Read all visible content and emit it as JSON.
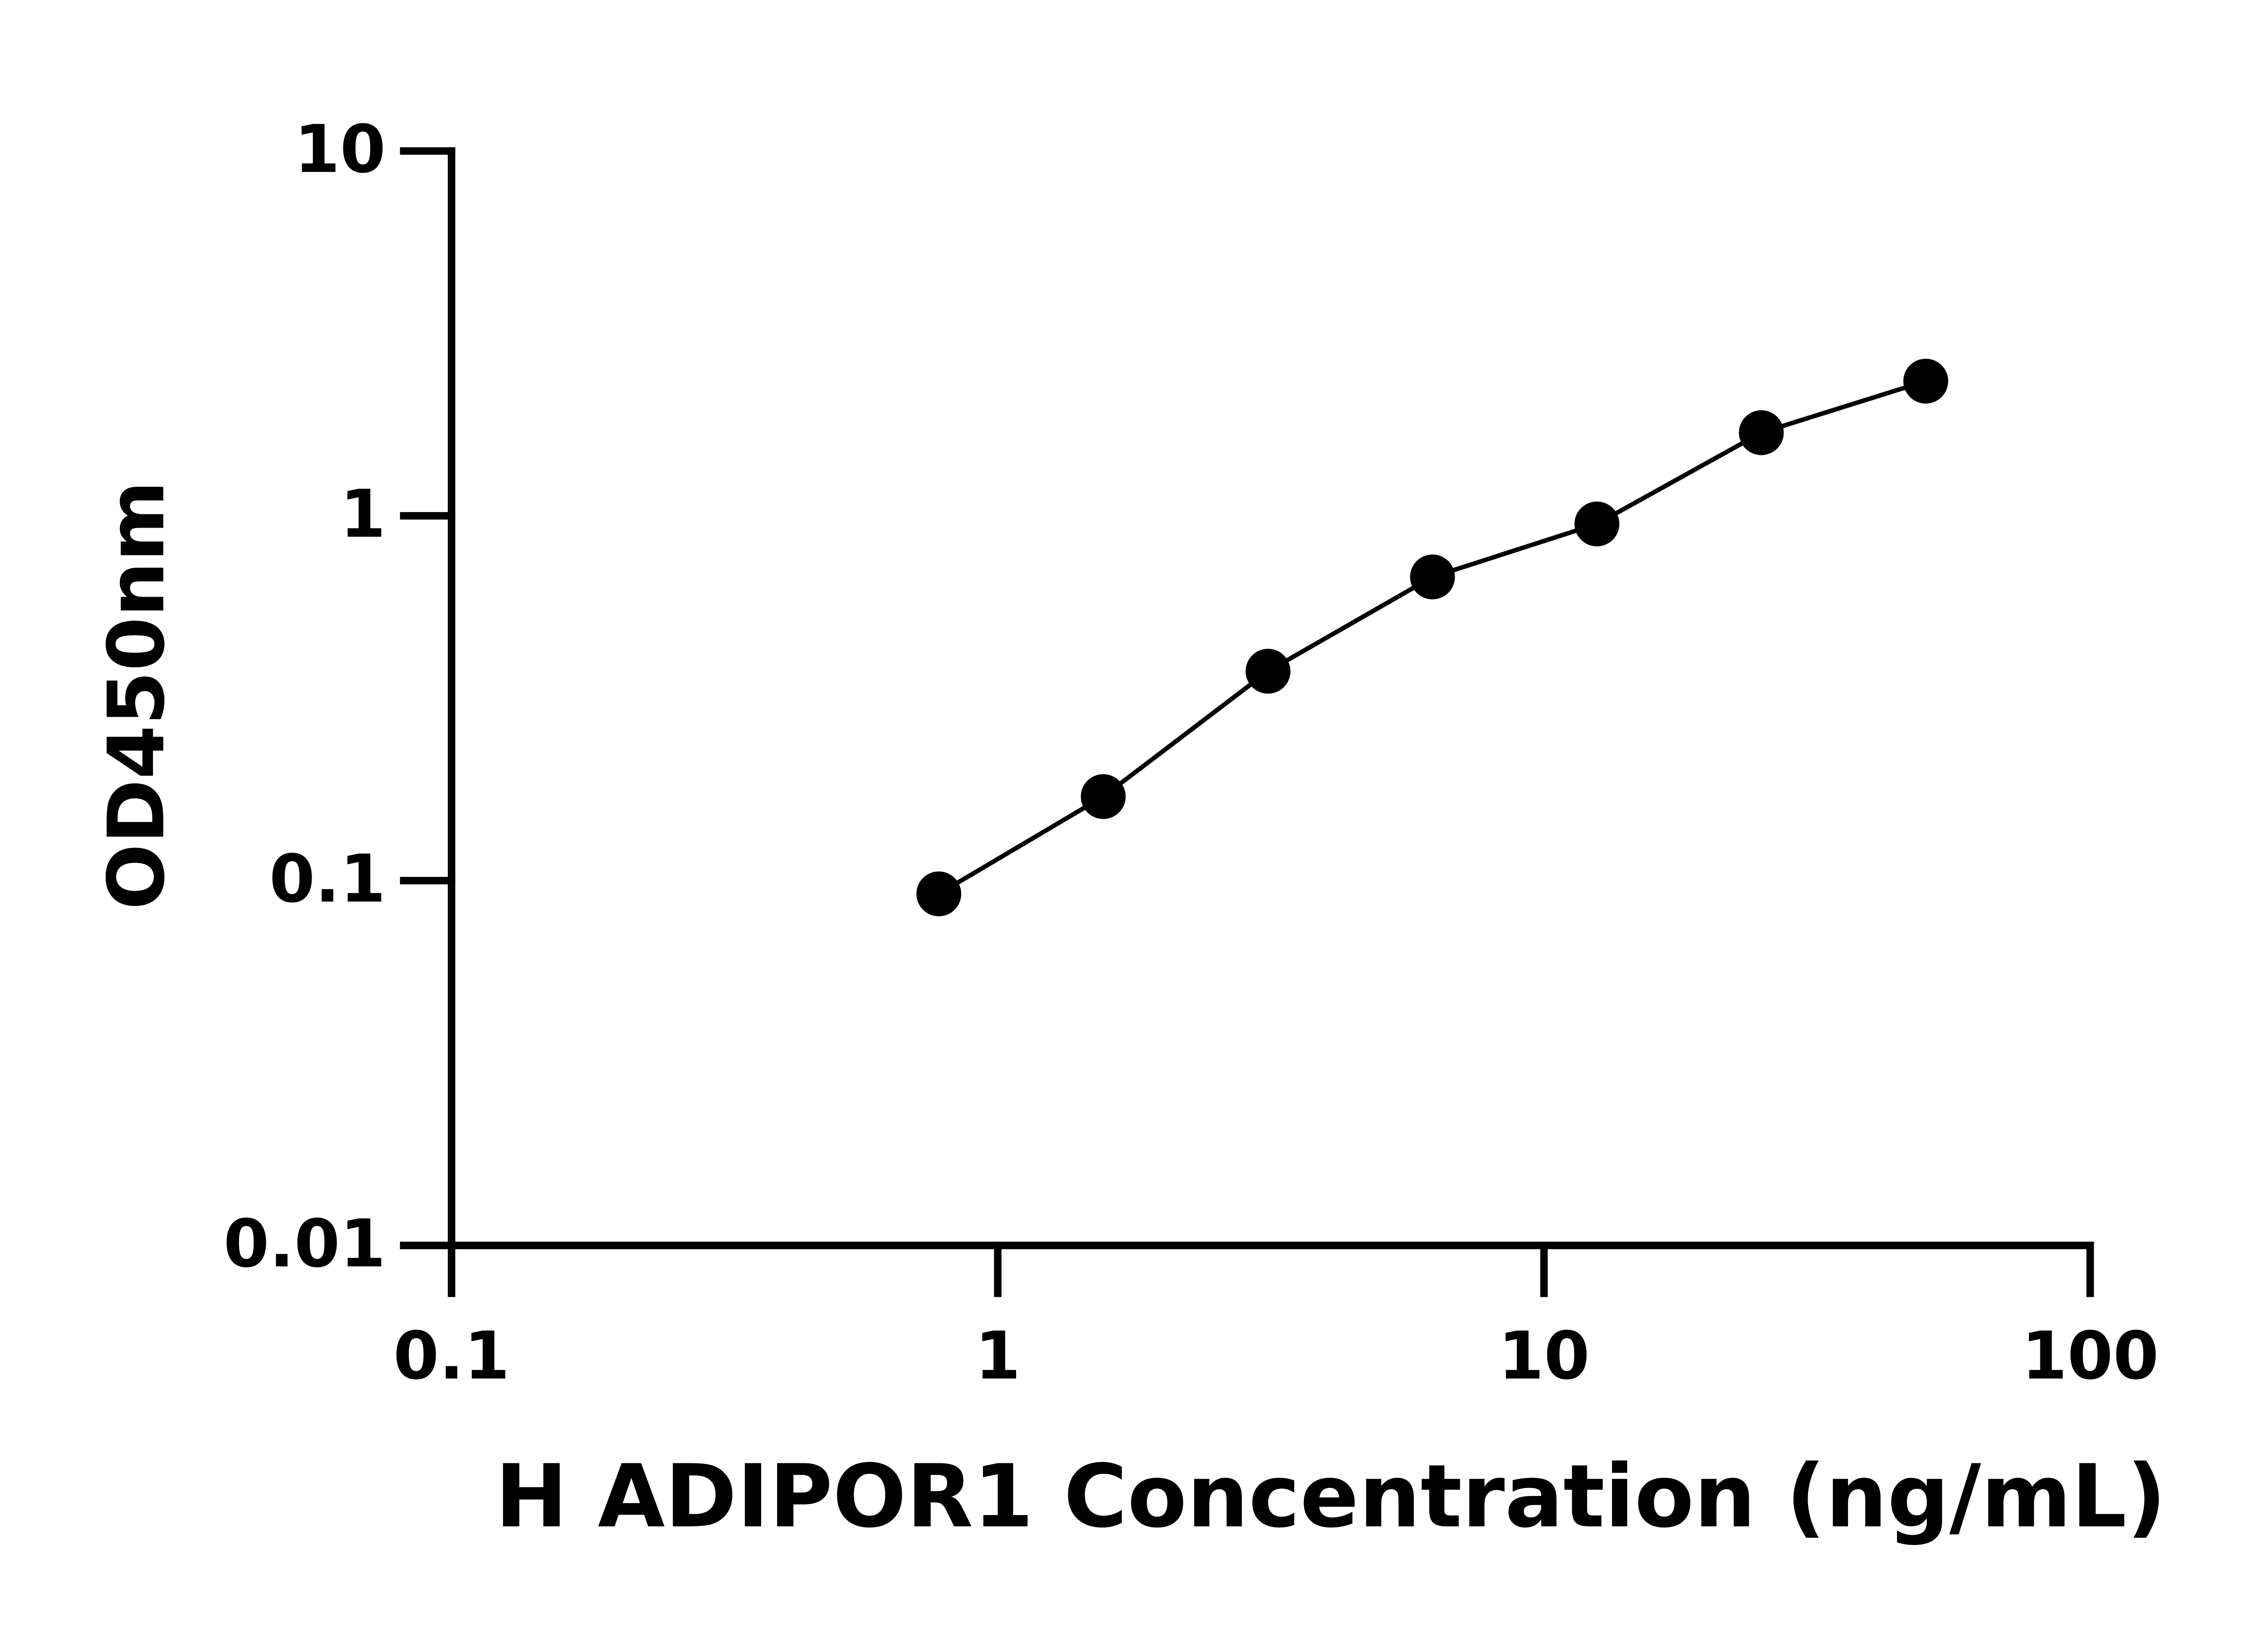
{
  "chart_data": {
    "type": "line",
    "x_label": "H ADIPOR1 Concentration (ng/mL)",
    "y_label": "OD450nm",
    "x_log": true,
    "y_log": true,
    "xlim": [
      0.1,
      100
    ],
    "xticks": [
      0.1,
      1,
      10,
      100
    ],
    "ylim": [
      0.01,
      10
    ],
    "yticks": [
      0.01,
      0.1,
      1,
      10
    ],
    "x": [
      0.78,
      1.56,
      3.125,
      6.25,
      12.5,
      25,
      50
    ],
    "series": [
      {
        "color": "#000000",
        "markers": true,
        "values": [
          0.092,
          0.17,
          0.375,
          0.68,
          0.95,
          1.69,
          2.34
        ]
      }
    ]
  }
}
